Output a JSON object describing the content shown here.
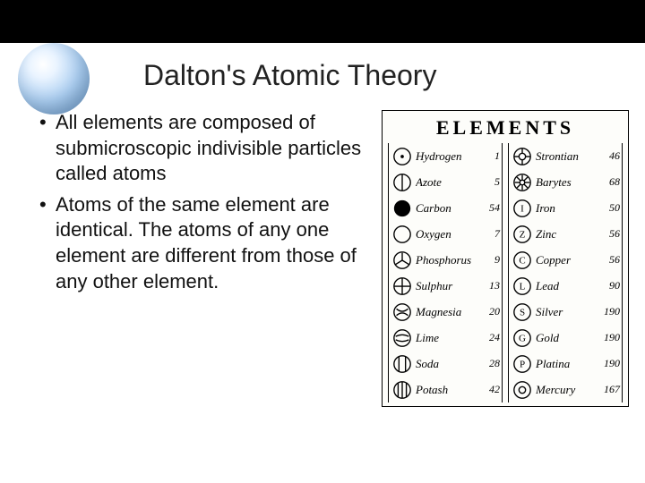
{
  "colors": {
    "topbar": "#000000",
    "background": "#ffffff",
    "text": "#111111",
    "title": "#222222",
    "sphere_light": "#eaf4ff",
    "sphere_dark": "#7ba8d6",
    "table_bg": "#fdfdfa",
    "table_border": "#000000"
  },
  "typography": {
    "title_fontsize": 32,
    "body_fontsize": 22,
    "table_title_fontsize": 22,
    "table_row_fontsize": 12
  },
  "title": "Dalton's Atomic Theory",
  "bullets": [
    "All elements are composed of submicroscopic indivisible particles called atoms",
    "Atoms of the same element are identical. The atoms of any one element are different from those of any other element."
  ],
  "elements_table": {
    "heading": "ELEMENTS",
    "left_column": [
      {
        "symbol": "hydrogen",
        "name": "Hydrogen",
        "weight": "1"
      },
      {
        "symbol": "azote",
        "name": "Azote",
        "weight": "5"
      },
      {
        "symbol": "carbon",
        "name": "Carbon",
        "weight": "54"
      },
      {
        "symbol": "oxygen",
        "name": "Oxygen",
        "weight": "7"
      },
      {
        "symbol": "phosphorus",
        "name": "Phosphorus",
        "weight": "9"
      },
      {
        "symbol": "sulphur",
        "name": "Sulphur",
        "weight": "13"
      },
      {
        "symbol": "magnesia",
        "name": "Magnesia",
        "weight": "20"
      },
      {
        "symbol": "lime",
        "name": "Lime",
        "weight": "24"
      },
      {
        "symbol": "soda",
        "name": "Soda",
        "weight": "28"
      },
      {
        "symbol": "potash",
        "name": "Potash",
        "weight": "42"
      }
    ],
    "right_column": [
      {
        "symbol": "strontian",
        "name": "Strontian",
        "weight": "46"
      },
      {
        "symbol": "barytes",
        "name": "Barytes",
        "weight": "68"
      },
      {
        "symbol": "iron",
        "name": "Iron",
        "weight": "50",
        "letter": "I"
      },
      {
        "symbol": "zinc",
        "name": "Zinc",
        "weight": "56",
        "letter": "Z"
      },
      {
        "symbol": "copper",
        "name": "Copper",
        "weight": "56",
        "letter": "C"
      },
      {
        "symbol": "lead",
        "name": "Lead",
        "weight": "90",
        "letter": "L"
      },
      {
        "symbol": "silver",
        "name": "Silver",
        "weight": "190",
        "letter": "S"
      },
      {
        "symbol": "gold",
        "name": "Gold",
        "weight": "190",
        "letter": "G"
      },
      {
        "symbol": "platina",
        "name": "Platina",
        "weight": "190",
        "letter": "P"
      },
      {
        "symbol": "mercury",
        "name": "Mercury",
        "weight": "167"
      }
    ]
  }
}
